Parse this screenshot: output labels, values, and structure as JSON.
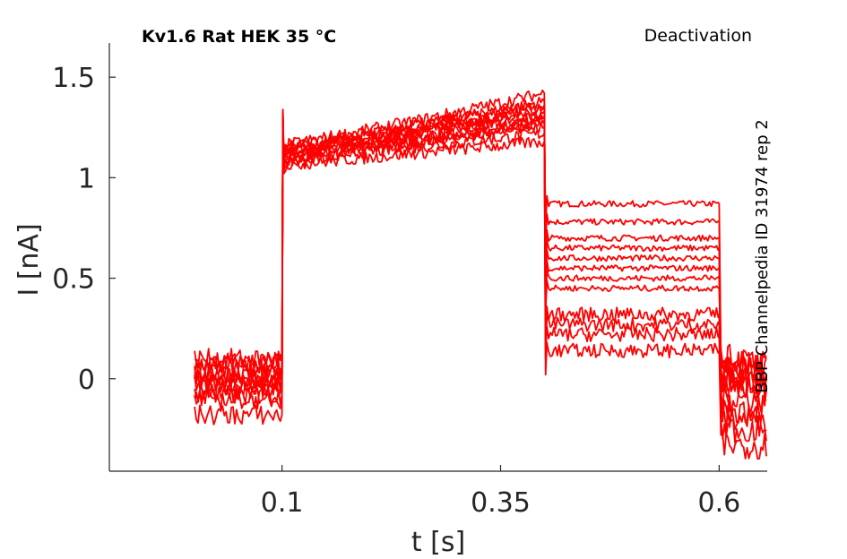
{
  "chart_data": {
    "type": "line",
    "title": "Kv1.6  Rat  HEK  35 °C",
    "protocol": "Deactivation",
    "source_label": "BBP Channelpedia ID 31974 rep 2",
    "xlabel": "t [s]",
    "ylabel": "I [nA]",
    "xlim": [
      -0.0975,
      0.655
    ],
    "ylim": [
      -0.46,
      1.67
    ],
    "x_ticks": [
      {
        "value": 0.1,
        "label": "0.1"
      },
      {
        "value": 0.35,
        "label": "0.35"
      },
      {
        "value": 0.6,
        "label": "0.6"
      }
    ],
    "y_ticks": [
      {
        "value": 0,
        "label": "0"
      },
      {
        "value": 0.5,
        "label": "0.5"
      },
      {
        "value": 1,
        "label": "1"
      },
      {
        "value": 1.5,
        "label": "1.5"
      }
    ],
    "grid": false,
    "line_color": "#ff0000",
    "series": [
      {
        "values": [
          {
            "x": 0.0,
            "y": 0.05
          },
          {
            "x": 0.1,
            "y": 0.05
          },
          {
            "x": 0.102,
            "y": 1.12
          },
          {
            "x": 0.25,
            "y": 1.2
          },
          {
            "x": 0.4,
            "y": 1.3
          },
          {
            "x": 0.402,
            "y": 0.87
          },
          {
            "x": 0.6,
            "y": 0.87
          },
          {
            "x": 0.602,
            "y": 0.05
          },
          {
            "x": 0.6,
            "y": 0.05
          }
        ]
      },
      {
        "values": [
          {
            "x": 0.0,
            "y": 0.03
          },
          {
            "x": 0.1,
            "y": 0.03
          },
          {
            "x": 0.102,
            "y": 1.15
          },
          {
            "x": 0.25,
            "y": 1.22
          },
          {
            "x": 0.4,
            "y": 1.33
          },
          {
            "x": 0.402,
            "y": 0.78
          },
          {
            "x": 0.6,
            "y": 0.78
          },
          {
            "x": 0.602,
            "y": 0.02
          },
          {
            "x": 0.6,
            "y": 0.02
          }
        ]
      },
      {
        "values": [
          {
            "x": 0.0,
            "y": 0.0
          },
          {
            "x": 0.1,
            "y": 0.0
          },
          {
            "x": 0.102,
            "y": 1.1
          },
          {
            "x": 0.25,
            "y": 1.18
          },
          {
            "x": 0.4,
            "y": 1.28
          },
          {
            "x": 0.402,
            "y": 0.7
          },
          {
            "x": 0.6,
            "y": 0.7
          },
          {
            "x": 0.602,
            "y": 0.0
          },
          {
            "x": 0.6,
            "y": 0.0
          }
        ]
      },
      {
        "values": [
          {
            "x": 0.0,
            "y": -0.02
          },
          {
            "x": 0.1,
            "y": -0.02
          },
          {
            "x": 0.102,
            "y": 1.13
          },
          {
            "x": 0.25,
            "y": 1.25
          },
          {
            "x": 0.4,
            "y": 1.38
          },
          {
            "x": 0.402,
            "y": 0.65
          },
          {
            "x": 0.6,
            "y": 0.65
          },
          {
            "x": 0.602,
            "y": -0.03
          },
          {
            "x": 0.6,
            "y": -0.03
          }
        ]
      },
      {
        "values": [
          {
            "x": 0.0,
            "y": -0.05
          },
          {
            "x": 0.1,
            "y": -0.05
          },
          {
            "x": 0.102,
            "y": 1.08
          },
          {
            "x": 0.25,
            "y": 1.15
          },
          {
            "x": 0.4,
            "y": 1.22
          },
          {
            "x": 0.402,
            "y": 0.6
          },
          {
            "x": 0.6,
            "y": 0.6
          },
          {
            "x": 0.602,
            "y": -0.05
          },
          {
            "x": 0.6,
            "y": -0.05
          }
        ]
      },
      {
        "values": [
          {
            "x": 0.0,
            "y": 0.08
          },
          {
            "x": 0.1,
            "y": 0.08
          },
          {
            "x": 0.102,
            "y": 1.16
          },
          {
            "x": 0.25,
            "y": 1.28
          },
          {
            "x": 0.4,
            "y": 1.42
          },
          {
            "x": 0.402,
            "y": 0.55
          },
          {
            "x": 0.6,
            "y": 0.55
          },
          {
            "x": 0.602,
            "y": 0.08
          },
          {
            "x": 0.6,
            "y": 0.08
          }
        ]
      },
      {
        "values": [
          {
            "x": 0.0,
            "y": -0.08
          },
          {
            "x": 0.1,
            "y": -0.08
          },
          {
            "x": 0.102,
            "y": 1.06
          },
          {
            "x": 0.25,
            "y": 1.12
          },
          {
            "x": 0.4,
            "y": 1.18
          },
          {
            "x": 0.402,
            "y": 0.5
          },
          {
            "x": 0.6,
            "y": 0.5
          },
          {
            "x": 0.602,
            "y": -0.1
          },
          {
            "x": 0.6,
            "y": -0.1
          }
        ]
      },
      {
        "values": [
          {
            "x": 0.0,
            "y": 0.1
          },
          {
            "x": 0.1,
            "y": 0.1
          },
          {
            "x": 0.102,
            "y": 1.14
          },
          {
            "x": 0.25,
            "y": 1.26
          },
          {
            "x": 0.4,
            "y": 1.36
          },
          {
            "x": 0.402,
            "y": 0.45
          },
          {
            "x": 0.6,
            "y": 0.45
          },
          {
            "x": 0.602,
            "y": 0.1
          },
          {
            "x": 0.6,
            "y": 0.1
          }
        ]
      },
      {
        "values": [
          {
            "x": 0.0,
            "y": -0.03
          },
          {
            "x": 0.1,
            "y": -0.03
          },
          {
            "x": 0.102,
            "y": 1.09
          },
          {
            "x": 0.25,
            "y": 1.2
          },
          {
            "x": 0.4,
            "y": 1.25
          },
          {
            "x": 0.402,
            "y": 0.32
          },
          {
            "x": 0.6,
            "y": 0.32
          },
          {
            "x": 0.602,
            "y": -0.15
          },
          {
            "x": 0.6,
            "y": -0.15
          }
        ]
      },
      {
        "values": [
          {
            "x": 0.0,
            "y": -0.1
          },
          {
            "x": 0.1,
            "y": -0.1
          },
          {
            "x": 0.102,
            "y": 1.11
          },
          {
            "x": 0.25,
            "y": 1.23
          },
          {
            "x": 0.4,
            "y": 1.35
          },
          {
            "x": 0.402,
            "y": 0.27
          },
          {
            "x": 0.6,
            "y": 0.27
          },
          {
            "x": 0.602,
            "y": -0.2
          },
          {
            "x": 0.6,
            "y": -0.2
          }
        ]
      },
      {
        "values": [
          {
            "x": 0.0,
            "y": 0.02
          },
          {
            "x": 0.1,
            "y": 0.02
          },
          {
            "x": 0.102,
            "y": 1.12
          },
          {
            "x": 0.25,
            "y": 1.24
          },
          {
            "x": 0.4,
            "y": 1.3
          },
          {
            "x": 0.402,
            "y": 0.22
          },
          {
            "x": 0.6,
            "y": 0.22
          },
          {
            "x": 0.602,
            "y": -0.25
          },
          {
            "x": 0.6,
            "y": -0.25
          }
        ]
      },
      {
        "values": [
          {
            "x": 0.0,
            "y": -0.18
          },
          {
            "x": 0.1,
            "y": -0.18
          },
          {
            "x": 0.102,
            "y": 1.07
          },
          {
            "x": 0.25,
            "y": 1.17
          },
          {
            "x": 0.4,
            "y": 1.27
          },
          {
            "x": 0.402,
            "y": 0.14
          },
          {
            "x": 0.6,
            "y": 0.14
          },
          {
            "x": 0.602,
            "y": -0.33
          },
          {
            "x": 0.6,
            "y": -0.33
          }
        ]
      }
    ]
  }
}
